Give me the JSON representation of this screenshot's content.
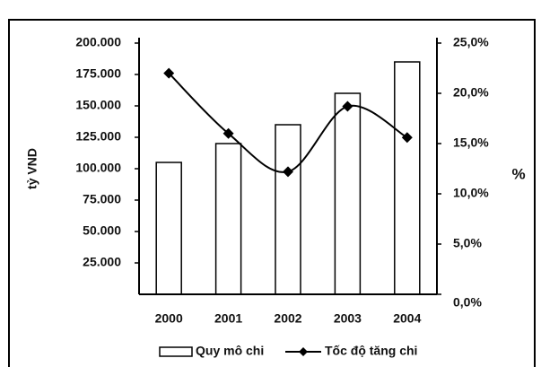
{
  "chart_data": {
    "type": "bar_line",
    "categories": [
      "2000",
      "2001",
      "2002",
      "2003",
      "2004"
    ],
    "series": [
      {
        "name": "Quy mô chi",
        "type": "bar",
        "color": "#ffffff",
        "values": [
          105000,
          120000,
          135000,
          160000,
          185000
        ]
      },
      {
        "name": "Tốc độ tăng chi",
        "type": "line",
        "axis": "y2",
        "color": "#000000",
        "values": [
          22,
          16,
          12.2,
          18.7,
          15.6
        ]
      }
    ],
    "ylabel": "tỷ VND",
    "y2label": "%",
    "ylim": [
      0,
      200000
    ],
    "yticks": [
      {
        "value": 25000,
        "label": "25.000"
      },
      {
        "value": 50000,
        "label": "50.000"
      },
      {
        "value": 75000,
        "label": "75.000"
      },
      {
        "value": 100000,
        "label": "100.000"
      },
      {
        "value": 125000,
        "label": "125.000"
      },
      {
        "value": 150000,
        "label": "150.000"
      },
      {
        "value": 175000,
        "label": "175.000"
      },
      {
        "value": 200000,
        "label": "200.000"
      }
    ],
    "y2lim": [
      0,
      25
    ],
    "y2ticks": [
      {
        "value": 0,
        "label": "0,0%"
      },
      {
        "value": 5,
        "label": "5,0%"
      },
      {
        "value": 10,
        "label": "10,0%"
      },
      {
        "value": 15,
        "label": "15,0%"
      },
      {
        "value": 20,
        "label": "20,0%"
      },
      {
        "value": 25,
        "label": "25,0%"
      }
    ],
    "legend": "bottom"
  }
}
